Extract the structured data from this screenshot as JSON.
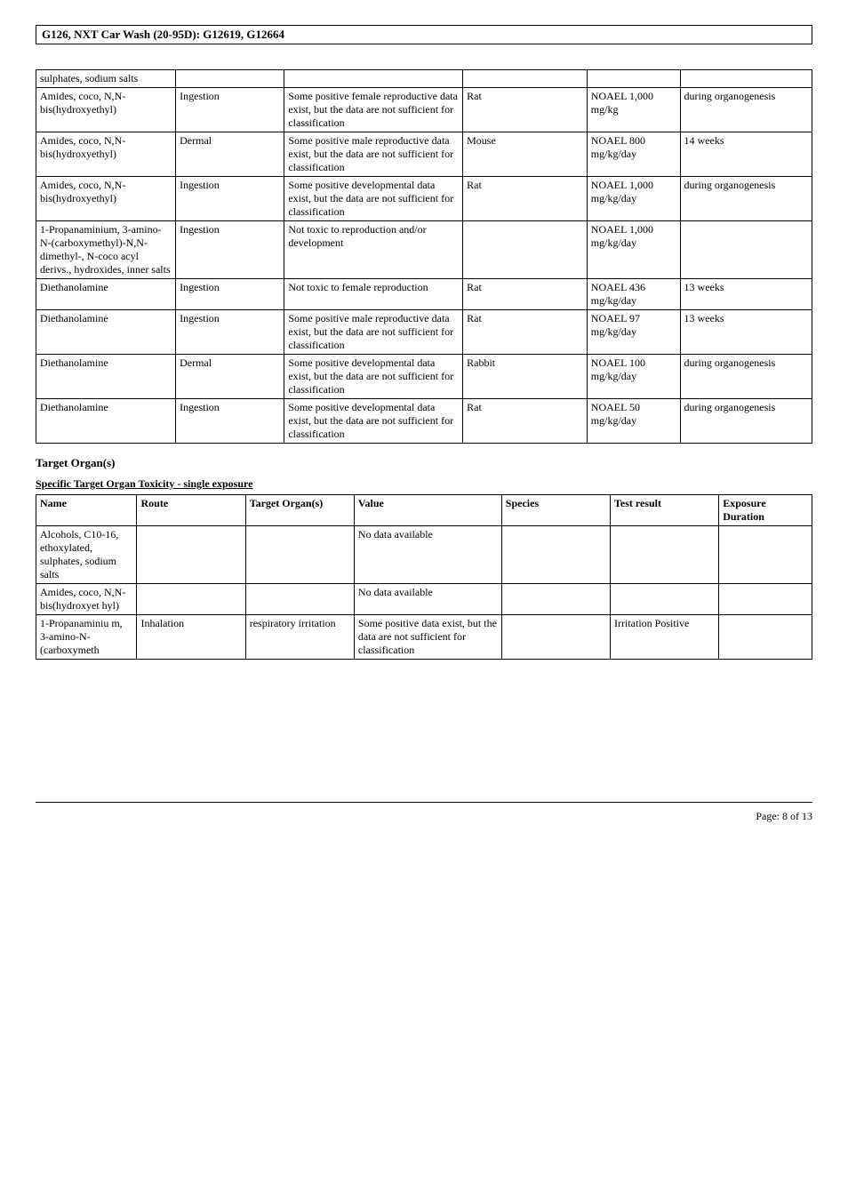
{
  "doc_title": "G126, NXT Car Wash (20-95D): G12619, G12664",
  "table1_rows": [
    {
      "c0": "sulphates, sodium salts",
      "c1": "",
      "c2": "",
      "c3": "",
      "c4": "",
      "c5": ""
    },
    {
      "c0": "Amides, coco, N,N-bis(hydroxyethyl)",
      "c1": "Ingestion",
      "c2": "Some positive female reproductive data exist, but the data are not sufficient for classification",
      "c3": "Rat",
      "c4": "NOAEL 1,000 mg/kg",
      "c5": "during organogenesis"
    },
    {
      "c0": "Amides, coco, N,N-bis(hydroxyethyl)",
      "c1": "Dermal",
      "c2": "Some positive male reproductive data exist, but the data are not sufficient for classification",
      "c3": "Mouse",
      "c4": "NOAEL 800 mg/kg/day",
      "c5": "14 weeks"
    },
    {
      "c0": "Amides, coco, N,N-bis(hydroxyethyl)",
      "c1": "Ingestion",
      "c2": "Some positive developmental data exist, but the data are not sufficient for classification",
      "c3": "Rat",
      "c4": "NOAEL 1,000 mg/kg/day",
      "c5": "during organogenesis"
    },
    {
      "c0": "1-Propanaminium, 3-amino-N-(carboxymethyl)-N,N-dimethyl-, N-coco acyl derivs., hydroxides, inner salts",
      "c1": "Ingestion",
      "c2": "Not toxic to reproduction and/or development",
      "c3": "",
      "c4": "NOAEL 1,000 mg/kg/day",
      "c5": ""
    },
    {
      "c0": "Diethanolamine",
      "c1": "Ingestion",
      "c2": "Not toxic to female reproduction",
      "c3": "Rat",
      "c4": "NOAEL 436 mg/kg/day",
      "c5": "13 weeks"
    },
    {
      "c0": "Diethanolamine",
      "c1": "Ingestion",
      "c2": "Some positive male reproductive data exist, but the data are not sufficient for classification",
      "c3": "Rat",
      "c4": "NOAEL 97 mg/kg/day",
      "c5": "13 weeks"
    },
    {
      "c0": "Diethanolamine",
      "c1": "Dermal",
      "c2": "Some positive developmental data exist, but the data are not sufficient for classification",
      "c3": "Rabbit",
      "c4": "NOAEL 100 mg/kg/day",
      "c5": "during organogenesis"
    },
    {
      "c0": "Diethanolamine",
      "c1": "Ingestion",
      "c2": "Some positive developmental data exist, but the data are not sufficient for classification",
      "c3": "Rat",
      "c4": "NOAEL 50 mg/kg/day",
      "c5": "during organogenesis"
    }
  ],
  "section_head": "Target Organ(s)",
  "sub_head": "Specific Target Organ Toxicity - single exposure",
  "table2_headers": [
    "Name",
    "Route",
    "Target Organ(s)",
    "Value",
    "Species",
    "Test result",
    "Exposure Duration"
  ],
  "table2_rows": [
    {
      "c0": "Alcohols, C10-16, ethoxylated, sulphates, sodium salts",
      "c1": "",
      "c2": "",
      "c3": "No data available",
      "c4": "",
      "c5": "",
      "c6": ""
    },
    {
      "c0": "Amides, coco, N,N-bis(hydroxyet hyl)",
      "c1": "",
      "c2": "",
      "c3": "No data available",
      "c4": "",
      "c5": "",
      "c6": ""
    },
    {
      "c0": "1-Propanaminiu m, 3-amino-N-(carboxymeth",
      "c1": "Inhalation",
      "c2": "respiratory irritation",
      "c3": "Some positive data exist, but the data are not sufficient for classification",
      "c4": "",
      "c5": "Irritation Positive",
      "c6": ""
    }
  ],
  "page_number": "Page: 8 of  13"
}
